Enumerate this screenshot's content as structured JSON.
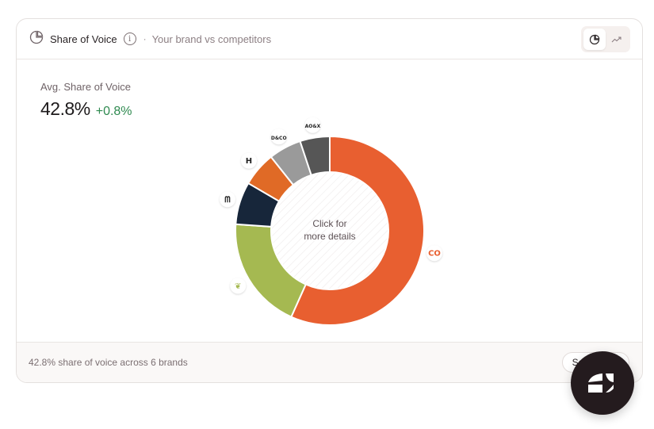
{
  "header": {
    "title": "Share of Voice",
    "separator": "·",
    "subtitle": "Your brand vs competitors",
    "info_icon": "info-icon",
    "view_toggle": [
      {
        "icon": "pie-chart-icon",
        "active": true
      },
      {
        "icon": "trend-line-icon",
        "active": false
      }
    ]
  },
  "metric": {
    "label": "Avg. Share of Voice",
    "value": "42.8%",
    "delta": "+0.8%",
    "delta_color": "#2f8a50"
  },
  "chart_data": {
    "type": "pie",
    "donut": true,
    "center_text": [
      "Click for",
      "more details"
    ],
    "slices": [
      {
        "brand_logo": "CO",
        "value": 56.7,
        "color": "#e85f30"
      },
      {
        "brand_logo": "leaf-logo",
        "value": 19.4,
        "color": "#a5b951"
      },
      {
        "brand_logo": "wave-logo",
        "value": 7.3,
        "color": "#17263a"
      },
      {
        "brand_logo": "H",
        "value": 5.9,
        "color": "#e06a26"
      },
      {
        "brand_logo": "D&CO",
        "value": 5.6,
        "color": "#9a9a9a"
      },
      {
        "brand_logo": "AO&X",
        "value": 5.1,
        "color": "#565656"
      }
    ]
  },
  "footer": {
    "summary": "42.8% share of voice across 6 brands",
    "button_label": "See details"
  },
  "fab": {
    "icon": "assistant-logo-icon"
  }
}
